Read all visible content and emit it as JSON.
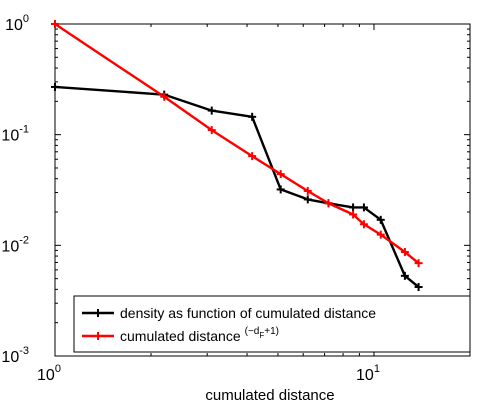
{
  "chart_data": {
    "type": "line",
    "title": "",
    "xlabel": "cumulated distance",
    "ylabel": "",
    "xscale": "log",
    "yscale": "log",
    "xlim": [
      1,
      20
    ],
    "ylim": [
      0.001,
      1
    ],
    "grid": false,
    "legend_position": "bottom",
    "x_ticks": [
      {
        "value": 1,
        "base": "10",
        "exponent": "0"
      },
      {
        "value": 10,
        "base": "10",
        "exponent": "1"
      }
    ],
    "y_ticks": [
      {
        "value": 0.001,
        "base": "10",
        "exponent": "-3"
      },
      {
        "value": 0.01,
        "base": "10",
        "exponent": "-2"
      },
      {
        "value": 0.1,
        "base": "10",
        "exponent": "-1"
      },
      {
        "value": 1,
        "base": "10",
        "exponent": "0"
      }
    ],
    "series": [
      {
        "name": "density as function of cumulated distance",
        "color": "#000000",
        "marker": "plus",
        "x": [
          1.0,
          2.2,
          3.1,
          4.15,
          5.1,
          6.2,
          7.2,
          8.6,
          9.3,
          10.5,
          12.5,
          13.8
        ],
        "y": [
          0.27,
          0.23,
          0.165,
          0.145,
          0.032,
          0.026,
          0.024,
          0.022,
          0.022,
          0.017,
          0.0053,
          0.0042
        ]
      },
      {
        "name": "cumulated distance",
        "name_superscript": "(−d",
        "name_superscript_sub": "F",
        "name_superscript_tail": "+1)",
        "color": "#ff0000",
        "marker": "plus",
        "x": [
          1.0,
          2.2,
          3.1,
          4.15,
          5.1,
          6.2,
          7.2,
          8.6,
          9.3,
          10.5,
          12.5,
          13.8
        ],
        "y": [
          1.0,
          0.22,
          0.11,
          0.064,
          0.044,
          0.031,
          0.024,
          0.019,
          0.0155,
          0.0125,
          0.0087,
          0.0069
        ]
      }
    ]
  }
}
